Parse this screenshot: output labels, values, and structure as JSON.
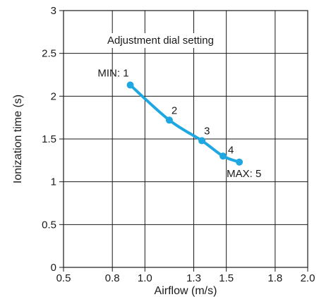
{
  "chart_data": {
    "type": "line",
    "xlabel": "Airflow (m/s)",
    "ylabel": "Ionization time (s)",
    "annotation": "Adjustment dial setting",
    "xlim": [
      0.5,
      2.0
    ],
    "ylim": [
      0,
      3
    ],
    "x_ticks": [
      "0.5",
      "0.8",
      "1.0",
      "1.3",
      "1.5",
      "1.8",
      "2.0"
    ],
    "y_ticks": [
      "0",
      "0.5",
      "1",
      "1.5",
      "2",
      "2.5",
      "3"
    ],
    "grid": true,
    "series": [
      {
        "points": [
          {
            "x": 0.91,
            "y": 2.13,
            "label": "MIN: 1"
          },
          {
            "x": 1.15,
            "y": 1.72,
            "label": "2"
          },
          {
            "x": 1.35,
            "y": 1.48,
            "label": "3"
          },
          {
            "x": 1.48,
            "y": 1.3,
            "label": "4"
          },
          {
            "x": 1.58,
            "y": 1.23,
            "label": "MAX: 5"
          }
        ]
      }
    ],
    "colors": {
      "series": "#1ea7e1",
      "grid": "#1a1a1a",
      "axis": "#1a1a1a"
    }
  }
}
